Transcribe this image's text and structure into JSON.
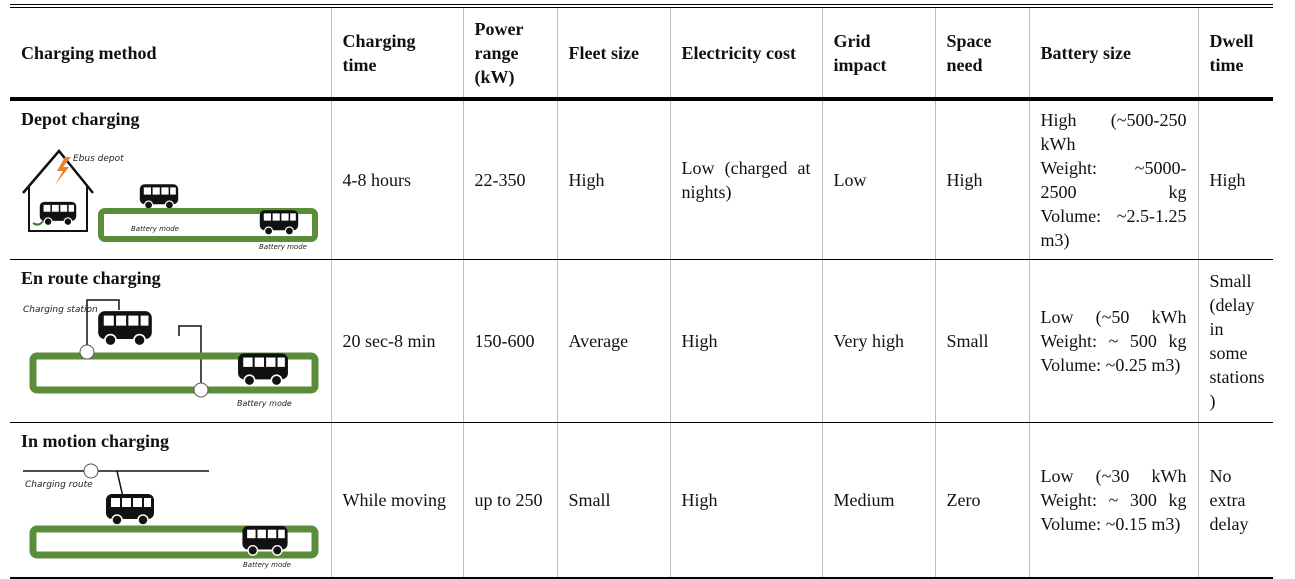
{
  "table": {
    "header": [
      "Charging method",
      "Charging time",
      "Power range (kW)",
      "Fleet size",
      "Electricity cost",
      "Grid impact",
      "Space need",
      "Battery size",
      "Dwell time"
    ],
    "rows": [
      {
        "method": "Depot charging",
        "illustration_labels": [
          "Ebus depot",
          "Battery mode",
          "Battery mode"
        ],
        "cells": [
          "4-8 hours",
          "22-350",
          "High",
          "Low (charged at nights)",
          "Low",
          "High",
          [
            "High (~500-250 kWh",
            "Weight: ~5000-2500 kg",
            "Volume: ~2.5-1.25 m3)"
          ],
          "High"
        ]
      },
      {
        "method": "En route charging",
        "illustration_labels": [
          "Charging station",
          "Battery mode"
        ],
        "cells": [
          "20 sec-8 min",
          "150-600",
          "Average",
          "High",
          "Very high",
          "Small",
          [
            "Low (~50 kWh",
            "Weight: ~ 500 kg",
            "Volume: ~0.25 m3)"
          ],
          "Small (delay in some stations )"
        ]
      },
      {
        "method": "In motion charging",
        "illustration_labels": [
          "Charging route",
          "Battery mode"
        ],
        "cells": [
          "While moving",
          "up to 250",
          "Small",
          "High",
          "Medium",
          "Zero",
          [
            "Low (~30 kWh",
            "Weight: ~ 300 kg",
            "Volume: ~0.15 m3)"
          ],
          "No extra delay"
        ]
      }
    ]
  }
}
